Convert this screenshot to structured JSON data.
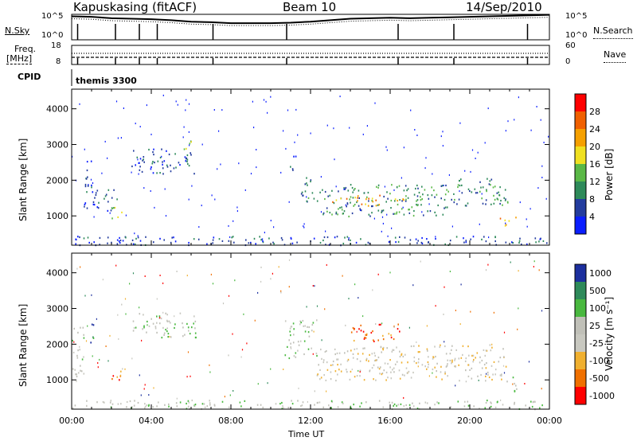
{
  "header": {
    "station": "Kapuskasing (fitACF)",
    "beam": "Beam 10",
    "date": "14/Sep/2010"
  },
  "side_labels": {
    "nsky": "N.Sky",
    "freq": "Freq.",
    "mhz": "[MHz]",
    "cpid": "CPID",
    "nsearch": "N.Search",
    "nave": "Nave",
    "cpid_value": "themis 3300"
  },
  "chart_data": [
    {
      "type": "line",
      "name_panel": "noise",
      "left_ticks": [
        "10^5",
        "10^0"
      ],
      "right_ticks": [
        "10^5",
        "10^0"
      ],
      "series": [
        {
          "name": "N.Sky",
          "x": [
            0,
            1,
            2,
            3,
            4,
            5,
            6,
            7,
            8,
            9,
            10,
            11,
            12,
            13,
            14,
            15,
            16,
            17,
            18,
            19,
            20,
            21,
            22,
            23,
            24
          ],
          "values": [
            4.8,
            4.7,
            4.4,
            4.3,
            4.2,
            4.0,
            3.7,
            3.6,
            3.4,
            3.4,
            3.4,
            3.5,
            3.7,
            4.0,
            4.3,
            4.4,
            4.5,
            4.4,
            4.5,
            4.6,
            4.7,
            4.8,
            4.9,
            5.0,
            5.1
          ]
        },
        {
          "name": "N.Search",
          "x": [
            0,
            1,
            2,
            3,
            4,
            5,
            6,
            7,
            8,
            9,
            10,
            11,
            12,
            13,
            14,
            15,
            16,
            17,
            18,
            19,
            20,
            21,
            22,
            23,
            24
          ],
          "values": [
            4.3,
            4.2,
            3.9,
            3.8,
            3.7,
            3.5,
            3.2,
            3.1,
            2.9,
            2.9,
            2.9,
            3.0,
            3.2,
            3.5,
            3.8,
            3.9,
            4.0,
            3.9,
            4.0,
            4.1,
            4.2,
            4.3,
            4.4,
            4.5,
            4.6
          ]
        }
      ],
      "xlim": [
        0,
        24
      ]
    },
    {
      "type": "line",
      "name_panel": "frequency",
      "left_ticks": [
        "18",
        "8"
      ],
      "right_ticks": [
        "60",
        "0"
      ],
      "series": [
        {
          "name": "Freq.",
          "x": [
            0,
            24
          ],
          "values": [
            11.5,
            11.5
          ]
        },
        {
          "name": "Nave",
          "x": [
            0,
            24
          ],
          "values": [
            20,
            20
          ]
        }
      ],
      "xlim": [
        0,
        24
      ]
    },
    {
      "type": "heatmap",
      "name_panel": "power",
      "ylabel": "Slant Range [km]",
      "ylim": [
        180,
        4550
      ],
      "yticks": [
        1000,
        2000,
        3000,
        4000
      ],
      "colorbar_label": "Power [dB]",
      "colorbar_ticks": [
        4,
        8,
        12,
        16,
        20,
        24,
        28
      ],
      "colors": [
        "#0a1eff",
        "#233c9e",
        "#2e8a5a",
        "#5ab846",
        "#f0e020",
        "#f5a000",
        "#f06000",
        "#ff0000"
      ],
      "background_echoes": [
        {
          "t0": 0.6,
          "t1": 1.0,
          "r0": 2000,
          "r1": 2600,
          "level": 1
        },
        {
          "t0": 0.6,
          "t1": 2.3,
          "r0": 1100,
          "r1": 1900,
          "level": 1
        },
        {
          "t0": 2.0,
          "t1": 2.5,
          "r0": 900,
          "r1": 1300,
          "level": 4
        },
        {
          "t0": 3.0,
          "t1": 6.2,
          "r0": 2200,
          "r1": 2900,
          "level": 1
        },
        {
          "t0": 5.5,
          "t1": 6.0,
          "r0": 2700,
          "r1": 3200,
          "level": 3
        },
        {
          "t0": 10.8,
          "t1": 11.3,
          "r0": 2300,
          "r1": 2700,
          "level": 1
        },
        {
          "t0": 11.5,
          "t1": 12.5,
          "r0": 1400,
          "r1": 2100,
          "level": 2
        },
        {
          "t0": 12.5,
          "t1": 19.0,
          "r0": 1000,
          "r1": 1900,
          "level": 2
        },
        {
          "t0": 13.0,
          "t1": 15.5,
          "r0": 1300,
          "r1": 1600,
          "level": 5
        },
        {
          "t0": 16.0,
          "t1": 17.5,
          "r0": 1300,
          "r1": 1500,
          "level": 4
        },
        {
          "t0": 19.0,
          "t1": 22.0,
          "r0": 1300,
          "r1": 2100,
          "level": 2
        },
        {
          "t0": 21.5,
          "t1": 22.3,
          "r0": 700,
          "r1": 1000,
          "level": 5
        },
        {
          "t0": 0.0,
          "t1": 24.0,
          "r0": 200,
          "r1": 450,
          "level": 1
        }
      ]
    },
    {
      "type": "heatmap",
      "name_panel": "velocity",
      "ylabel": "Slant Range [km]",
      "ylim": [
        180,
        4550
      ],
      "yticks": [
        1000,
        2000,
        3000,
        4000
      ],
      "colorbar_label": "Velocity [m s⁻¹]",
      "colorbar_ticks": [
        1000,
        500,
        100,
        25,
        -25,
        -100,
        -500,
        -1000
      ],
      "colors": [
        "#1c2f9e",
        "#2e8a5a",
        "#49b83f",
        "#c0c0b8",
        "#c8c8c0",
        "#f0b030",
        "#f07000",
        "#ff0000"
      ],
      "background_echoes": [
        {
          "t0": 0.0,
          "t1": 0.7,
          "r0": 1100,
          "r1": 2500,
          "level": 3
        },
        {
          "t0": 0.8,
          "t1": 1.1,
          "r0": 2000,
          "r1": 2600,
          "level": 1
        },
        {
          "t0": 2.0,
          "t1": 2.5,
          "r0": 900,
          "r1": 1400,
          "level": 6
        },
        {
          "t0": 3.0,
          "t1": 6.3,
          "r0": 2200,
          "r1": 2900,
          "level": 3
        },
        {
          "t0": 10.7,
          "t1": 12.3,
          "r0": 1600,
          "r1": 2700,
          "level": 3
        },
        {
          "t0": 12.3,
          "t1": 21.8,
          "r0": 1000,
          "r1": 2000,
          "level": 4
        },
        {
          "t0": 14.0,
          "t1": 16.5,
          "r0": 2100,
          "r1": 2600,
          "level": 6
        },
        {
          "t0": 21.7,
          "t1": 22.4,
          "r0": 700,
          "r1": 1100,
          "level": 2
        },
        {
          "t0": 0.0,
          "t1": 24.0,
          "r0": 200,
          "r1": 450,
          "level": 3
        }
      ]
    }
  ],
  "xaxis": {
    "label": "Time UT",
    "ticks": [
      "00:00",
      "04:00",
      "08:00",
      "12:00",
      "16:00",
      "20:00",
      "00:00"
    ],
    "tick_hours": [
      0,
      4,
      8,
      12,
      16,
      20,
      24
    ]
  },
  "cpid_change_hours": [
    0.3,
    2.2,
    3.4,
    4.3,
    7.1,
    10.8,
    16.4,
    19.2,
    22.9
  ]
}
